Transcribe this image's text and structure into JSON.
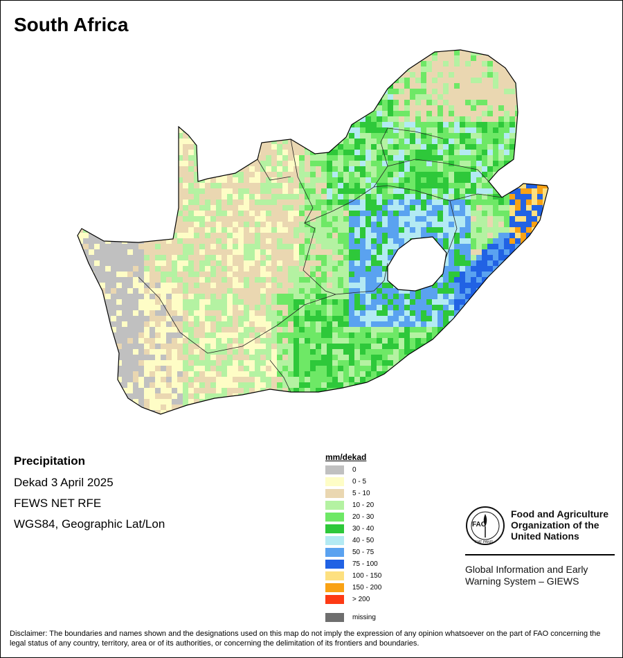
{
  "title": "South Africa",
  "info": {
    "variable": "Precipitation",
    "period": "Dekad 3 April 2025",
    "source": "FEWS NET RFE",
    "projection": "WGS84, Geographic Lat/Lon"
  },
  "legend": {
    "title": "mm/dekad",
    "classes": [
      {
        "label": "0",
        "color": "#c0c0c0"
      },
      {
        "label": "0 - 5",
        "color": "#fefdc6"
      },
      {
        "label": "5 - 10",
        "color": "#ead7b1"
      },
      {
        "label": "10 - 20",
        "color": "#b4f2a2"
      },
      {
        "label": "20 - 30",
        "color": "#6ee866"
      },
      {
        "label": "30 - 40",
        "color": "#2ec83a"
      },
      {
        "label": "40 - 50",
        "color": "#b3eaf3"
      },
      {
        "label": "50 - 75",
        "color": "#5aa2f0"
      },
      {
        "label": "75 - 100",
        "color": "#2162e4"
      },
      {
        "label": "100 - 150",
        "color": "#fde080"
      },
      {
        "label": "150 - 200",
        "color": "#f9a214"
      },
      {
        "label": "> 200",
        "color": "#fd3a14"
      }
    ],
    "missing": {
      "label": "missing",
      "color": "#6e6e6e"
    }
  },
  "organization": {
    "logo_letters": "FAO",
    "logo_motto": "FIAT PANIS",
    "name_lines": [
      "Food and Agriculture",
      "Organization of the",
      "United Nations"
    ],
    "system_lines": [
      "Global Information and Early",
      "Warning System – GIEWS"
    ]
  },
  "disclaimer": "Disclaimer: The boundaries and names shown and the designations used on this map do not imply the expression of any opinion whatsoever on the part of FAO concerning the legal status of any country, territory, area or of its authorities, or concerning the delimitation of its frontiers and boundaries."
}
